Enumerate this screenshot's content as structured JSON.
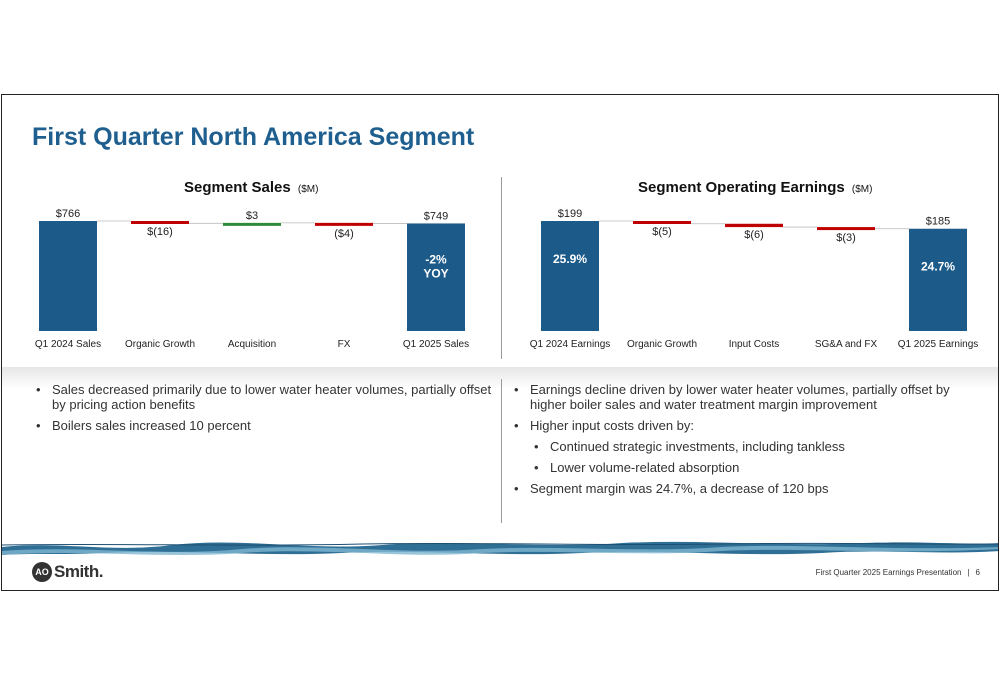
{
  "title": "First Quarter North America Segment",
  "colors": {
    "blue": "#1c5a8a",
    "red": "#c00000",
    "green": "#2e8b3a",
    "title": "#1f5f8f"
  },
  "chart_data": [
    {
      "type": "bar",
      "subtype": "waterfall",
      "title": "Segment Sales",
      "unit": "($M)",
      "categories": [
        "Q1 2024 Sales",
        "Organic Growth",
        "Acquisition",
        "FX",
        "Q1 2025 Sales"
      ],
      "values": [
        766,
        -16,
        3,
        -4,
        749
      ],
      "kinds": [
        "total",
        "delta",
        "delta",
        "delta",
        "total"
      ],
      "data_labels": [
        "$766",
        "$(16)",
        "$3",
        "($4)",
        "$749"
      ],
      "inside_labels": [
        "",
        "",
        "",
        "",
        "-2%\nYOY"
      ],
      "ylim": [
        0,
        766
      ]
    },
    {
      "type": "bar",
      "subtype": "waterfall",
      "title": "Segment Operating Earnings",
      "unit": "($M)",
      "categories": [
        "Q1 2024 Earnings",
        "Organic Growth",
        "Input Costs",
        "SG&A and FX",
        "Q1 2025 Earnings"
      ],
      "values": [
        199,
        -5,
        -6,
        -3,
        185
      ],
      "kinds": [
        "total",
        "delta",
        "delta",
        "delta",
        "total"
      ],
      "data_labels": [
        "$199",
        "$(5)",
        "$(6)",
        "$(3)",
        "$185"
      ],
      "inside_labels": [
        "25.9%",
        "",
        "",
        "",
        "24.7%"
      ],
      "ylim": [
        0,
        199
      ]
    }
  ],
  "left_bullets": [
    "Sales decreased primarily due to lower water heater volumes, partially offset by pricing action benefits",
    "Boilers sales increased 10 percent"
  ],
  "right_bullets": [
    "Earnings decline driven by lower water heater volumes, partially offset by higher boiler sales and water treatment margin improvement",
    "Higher input costs driven by:",
    "Continued strategic investments, including tankless",
    "Lower volume-related absorption",
    "Segment margin was 24.7%, a decrease of 120 bps"
  ],
  "right_bullet_levels": [
    0,
    0,
    1,
    1,
    0
  ],
  "logo": {
    "mark": "AO",
    "text": "Smith."
  },
  "footer": {
    "text": "First Quarter 2025 Earnings Presentation",
    "separator": "|",
    "page": "6"
  }
}
